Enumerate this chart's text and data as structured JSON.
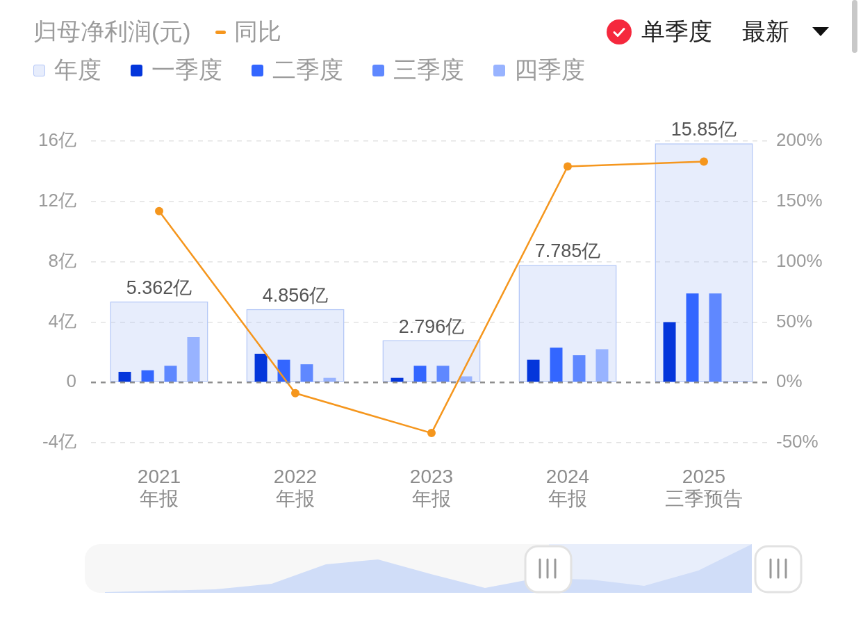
{
  "chart_data": {
    "type": "bar",
    "title": "归母净利润(元)",
    "annotations": [
      "单季度",
      "最新"
    ],
    "categories": [
      "2021\n年报",
      "2022\n年报",
      "2023\n年报",
      "2024\n年报",
      "2025\n三季预告"
    ],
    "series": [
      {
        "name": "年度",
        "color": "#b3c6f7",
        "values": [
          5.362,
          4.856,
          2.796,
          7.785,
          15.85
        ],
        "value_labels": [
          "5.362亿",
          "4.856亿",
          "2.796亿",
          "7.785亿",
          "15.85亿"
        ]
      },
      {
        "name": "一季度",
        "color": "#0436db",
        "values": [
          0.7,
          1.9,
          0.3,
          1.5,
          4.0
        ]
      },
      {
        "name": "二季度",
        "color": "#3366ff",
        "values": [
          0.8,
          1.5,
          1.1,
          2.3,
          5.9
        ]
      },
      {
        "name": "三季度",
        "color": "#5f88ff",
        "values": [
          1.1,
          1.2,
          1.1,
          1.8,
          5.9
        ]
      },
      {
        "name": "四季度",
        "color": "#98b3ff",
        "values": [
          3.0,
          0.3,
          0.4,
          2.2,
          null
        ]
      },
      {
        "name": "同比",
        "type": "line",
        "axis": "y2",
        "color": "#f5961d",
        "values": [
          142,
          -9,
          -42,
          179,
          183
        ]
      }
    ],
    "ylim": [
      -4,
      16
    ],
    "yticks": [
      {
        "value": -4,
        "label": "-4亿"
      },
      0,
      {
        "value": 4,
        "label": "4亿"
      },
      {
        "value": 8,
        "label": "8亿"
      },
      {
        "value": 12,
        "label": "12亿"
      },
      {
        "value": 16,
        "label": "16亿"
      }
    ],
    "y2lim": [
      -50,
      200
    ],
    "y2ticks": [
      {
        "value": -50,
        "label": "-50%"
      },
      {
        "value": 0,
        "label": "0%"
      },
      {
        "value": 50,
        "label": "50%"
      },
      {
        "value": 100,
        "label": "100%"
      },
      {
        "value": 150,
        "label": "150%"
      },
      {
        "value": 200,
        "label": "200%"
      }
    ],
    "ref_lines": [
      {
        "axis": "y",
        "value": 0,
        "color": "#8e8e8e",
        "line_style": "dashed"
      }
    ],
    "grid": "y",
    "legend": "top left",
    "marker": "circle"
  }
}
